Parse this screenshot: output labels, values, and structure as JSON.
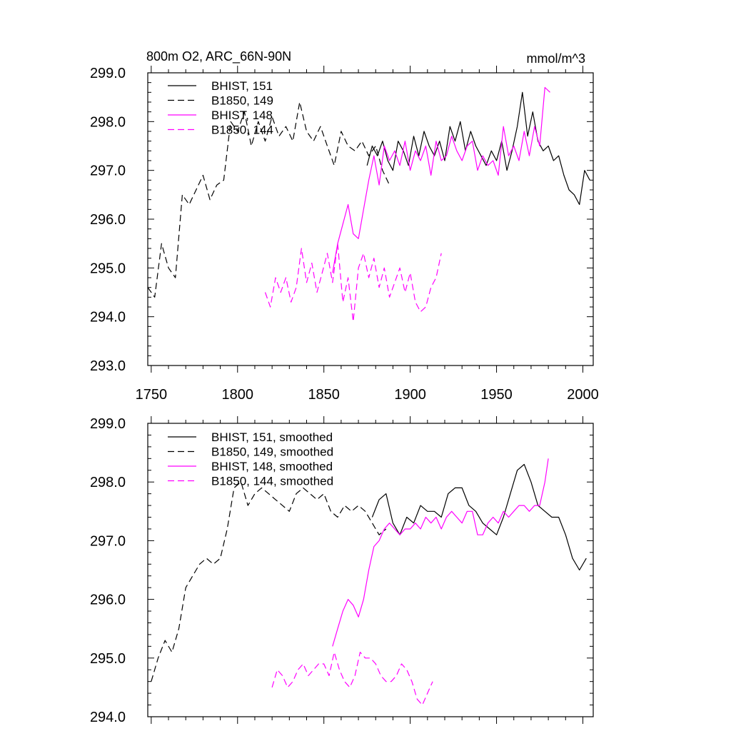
{
  "chart_data": [
    {
      "type": "line",
      "title": "800m O2, ARC_66N-90N",
      "units": "mmol/m^3",
      "xlim": [
        1748,
        2006
      ],
      "ylim": [
        293.0,
        299.0
      ],
      "yticks": [
        "293.0",
        "294.0",
        "295.0",
        "296.0",
        "297.0",
        "298.0",
        "299.0"
      ],
      "xticks": [
        "1750",
        "1800",
        "1850",
        "1900",
        "1950",
        "2000"
      ],
      "show_xtick_labels": true,
      "series": [
        {
          "name": "BHIST, 151",
          "color": "#000000",
          "dash": "solid",
          "x": [
            1875,
            1878,
            1881,
            1884,
            1887,
            1890,
            1893,
            1896,
            1899,
            1902,
            1905,
            1908,
            1911,
            1914,
            1917,
            1920,
            1923,
            1926,
            1929,
            1932,
            1935,
            1938,
            1941,
            1944,
            1947,
            1950,
            1953,
            1956,
            1959,
            1962,
            1965,
            1968,
            1971,
            1974,
            1977,
            1980,
            1983,
            1986,
            1989,
            1992,
            1995,
            1998,
            2001,
            2004
          ],
          "y": [
            297.1,
            297.5,
            297.3,
            297.6,
            297.2,
            297.0,
            297.6,
            297.4,
            297.1,
            297.7,
            297.3,
            297.8,
            297.5,
            297.3,
            297.6,
            297.2,
            297.9,
            297.6,
            298.0,
            297.4,
            297.8,
            297.5,
            297.3,
            297.1,
            297.4,
            297.2,
            297.6,
            297.0,
            297.4,
            297.9,
            298.6,
            297.7,
            298.2,
            297.6,
            297.4,
            297.5,
            297.2,
            297.3,
            296.9,
            296.6,
            296.5,
            296.3,
            297.0,
            296.8
          ]
        },
        {
          "name": "B1850, 149",
          "color": "#000000",
          "dash": "dashed",
          "x": [
            1748,
            1752,
            1756,
            1760,
            1764,
            1768,
            1772,
            1776,
            1780,
            1784,
            1788,
            1792,
            1796,
            1800,
            1804,
            1808,
            1812,
            1816,
            1820,
            1824,
            1828,
            1832,
            1836,
            1840,
            1844,
            1848,
            1852,
            1856,
            1860,
            1864,
            1868,
            1872,
            1876,
            1880,
            1884,
            1888
          ],
          "y": [
            294.6,
            294.4,
            295.5,
            295.0,
            294.8,
            296.5,
            296.3,
            296.6,
            296.9,
            296.4,
            296.7,
            296.8,
            298.0,
            297.8,
            298.2,
            297.5,
            298.0,
            297.6,
            298.1,
            297.7,
            297.9,
            297.6,
            298.4,
            297.8,
            297.6,
            297.9,
            297.5,
            297.1,
            297.8,
            297.5,
            297.4,
            297.6,
            297.3,
            297.5,
            297.0,
            296.7
          ]
        },
        {
          "name": "BHIST, 148",
          "color": "#ff00ff",
          "dash": "solid",
          "x": [
            1855,
            1858,
            1861,
            1864,
            1867,
            1870,
            1873,
            1876,
            1879,
            1882,
            1885,
            1888,
            1891,
            1894,
            1897,
            1900,
            1903,
            1906,
            1909,
            1912,
            1915,
            1918,
            1921,
            1924,
            1927,
            1930,
            1933,
            1936,
            1939,
            1942,
            1945,
            1948,
            1951,
            1954,
            1957,
            1960,
            1963,
            1966,
            1969,
            1972,
            1975,
            1978,
            1981
          ],
          "y": [
            294.9,
            295.5,
            295.9,
            296.3,
            295.7,
            295.6,
            296.2,
            296.8,
            297.3,
            296.7,
            297.5,
            297.2,
            297.4,
            297.1,
            297.6,
            297.0,
            297.4,
            297.2,
            297.5,
            296.9,
            297.6,
            297.2,
            297.3,
            297.7,
            297.4,
            297.2,
            297.5,
            297.6,
            297.0,
            297.3,
            297.1,
            297.2,
            296.9,
            297.9,
            297.3,
            297.5,
            297.2,
            297.8,
            297.3,
            297.9,
            297.5,
            298.7,
            298.6
          ]
        },
        {
          "name": "B1850, 144",
          "color": "#ff00ff",
          "dash": "dashed",
          "x": [
            1816,
            1819,
            1822,
            1825,
            1828,
            1831,
            1834,
            1837,
            1840,
            1843,
            1846,
            1849,
            1852,
            1855,
            1858,
            1861,
            1864,
            1867,
            1870,
            1873,
            1876,
            1879,
            1882,
            1885,
            1888,
            1891,
            1894,
            1897,
            1900,
            1903,
            1906,
            1909,
            1912,
            1915,
            1918
          ],
          "y": [
            294.5,
            294.2,
            294.8,
            294.5,
            294.8,
            294.3,
            294.6,
            295.4,
            294.7,
            295.1,
            294.5,
            294.9,
            295.3,
            294.7,
            295.5,
            294.3,
            294.8,
            293.9,
            295.0,
            295.3,
            294.8,
            295.2,
            294.6,
            295.0,
            294.4,
            294.7,
            295.0,
            294.5,
            294.9,
            294.3,
            294.1,
            294.2,
            294.6,
            294.8,
            295.3
          ]
        }
      ]
    },
    {
      "type": "line",
      "title": "",
      "units": "",
      "xlim": [
        1748,
        2006
      ],
      "ylim": [
        294.0,
        299.0
      ],
      "yticks": [
        "294.0",
        "295.0",
        "296.0",
        "297.0",
        "298.0",
        "299.0"
      ],
      "xticks": [
        "1750",
        "1800",
        "1850",
        "1900",
        "1950",
        "2000"
      ],
      "show_xtick_labels": false,
      "series": [
        {
          "name": "BHIST, 151, smoothed",
          "color": "#000000",
          "dash": "solid",
          "x": [
            1878,
            1882,
            1886,
            1890,
            1894,
            1898,
            1902,
            1906,
            1910,
            1914,
            1918,
            1922,
            1926,
            1930,
            1934,
            1938,
            1942,
            1946,
            1950,
            1954,
            1958,
            1962,
            1966,
            1970,
            1974,
            1978,
            1982,
            1986,
            1990,
            1994,
            1998,
            2002
          ],
          "y": [
            297.4,
            297.7,
            297.8,
            297.3,
            297.1,
            297.4,
            297.3,
            297.6,
            297.5,
            297.5,
            297.4,
            297.8,
            297.9,
            297.9,
            297.6,
            297.5,
            297.3,
            297.2,
            297.1,
            297.4,
            297.8,
            298.2,
            298.3,
            298.0,
            297.6,
            297.5,
            297.4,
            297.4,
            297.1,
            296.7,
            296.5,
            296.7
          ]
        },
        {
          "name": "B1850, 149, smoothed",
          "color": "#000000",
          "dash": "dashed",
          "x": [
            1750,
            1754,
            1758,
            1762,
            1766,
            1770,
            1774,
            1778,
            1782,
            1786,
            1790,
            1794,
            1798,
            1802,
            1806,
            1810,
            1814,
            1818,
            1822,
            1826,
            1830,
            1834,
            1838,
            1842,
            1846,
            1850,
            1854,
            1858,
            1862,
            1866,
            1870,
            1874,
            1878,
            1882,
            1886
          ],
          "y": [
            294.6,
            295.0,
            295.3,
            295.1,
            295.5,
            296.2,
            296.4,
            296.6,
            296.7,
            296.6,
            296.7,
            297.2,
            297.9,
            298.0,
            297.6,
            297.8,
            297.9,
            297.8,
            297.7,
            297.6,
            297.5,
            297.8,
            297.9,
            297.8,
            297.7,
            297.8,
            297.5,
            297.4,
            297.6,
            297.5,
            297.6,
            297.5,
            297.3,
            297.1,
            297.2
          ]
        },
        {
          "name": "BHIST, 148, smoothed",
          "color": "#ff00ff",
          "dash": "solid",
          "x": [
            1855,
            1858,
            1861,
            1864,
            1867,
            1870,
            1873,
            1876,
            1879,
            1882,
            1885,
            1888,
            1891,
            1894,
            1897,
            1900,
            1903,
            1906,
            1909,
            1912,
            1915,
            1918,
            1921,
            1924,
            1927,
            1930,
            1933,
            1936,
            1939,
            1942,
            1945,
            1948,
            1951,
            1954,
            1957,
            1960,
            1963,
            1966,
            1969,
            1972,
            1975,
            1978,
            1980
          ],
          "y": [
            295.2,
            295.5,
            295.8,
            296.0,
            295.9,
            295.7,
            296.0,
            296.5,
            296.9,
            297.0,
            297.2,
            297.3,
            297.2,
            297.1,
            297.2,
            297.2,
            297.3,
            297.2,
            297.4,
            297.3,
            297.4,
            297.2,
            297.4,
            297.5,
            297.4,
            297.3,
            297.5,
            297.5,
            297.1,
            297.1,
            297.3,
            297.4,
            297.3,
            297.5,
            297.4,
            297.5,
            297.6,
            297.6,
            297.5,
            297.6,
            297.6,
            298.0,
            298.4
          ]
        },
        {
          "name": "B1850, 144, smoothed",
          "color": "#ff00ff",
          "dash": "dashed",
          "x": [
            1820,
            1823,
            1826,
            1829,
            1832,
            1835,
            1838,
            1841,
            1844,
            1847,
            1850,
            1853,
            1856,
            1859,
            1862,
            1865,
            1868,
            1871,
            1874,
            1877,
            1880,
            1883,
            1886,
            1889,
            1892,
            1895,
            1898,
            1901,
            1904,
            1907,
            1910,
            1913
          ],
          "y": [
            294.5,
            294.8,
            294.7,
            294.5,
            294.6,
            294.8,
            294.9,
            294.7,
            294.8,
            294.9,
            294.9,
            294.7,
            295.1,
            294.8,
            294.6,
            294.5,
            294.7,
            295.1,
            295.0,
            295.0,
            294.9,
            294.7,
            294.6,
            294.6,
            294.7,
            294.9,
            294.8,
            294.6,
            294.3,
            294.2,
            294.4,
            294.6
          ]
        }
      ]
    }
  ]
}
